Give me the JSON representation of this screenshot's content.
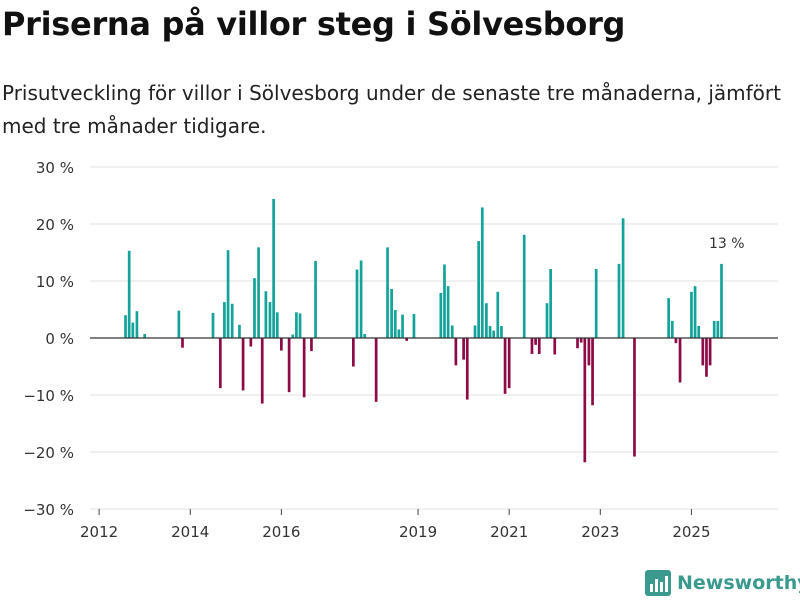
{
  "title": "Priserna på villor steg i Sölvesborg",
  "subtitle": "Prisutveckling för villor i Sölvesborg under de senaste tre månaderna, jämfört med tre månader tidigare.",
  "brand": "Newsworthy",
  "colors": {
    "positive": "#13a39a",
    "negative": "#8c0a45",
    "grid": "#e2e2e2",
    "zero_line": "#333333",
    "brand": "#3a9a8e"
  },
  "chart_data": {
    "type": "bar",
    "title": "Priserna på villor steg i Sölvesborg",
    "xlabel": "",
    "ylabel": "",
    "ylim": [
      -30,
      30
    ],
    "xlim": [
      2011.8,
      2026.9
    ],
    "y_ticks": [
      30,
      20,
      10,
      0,
      -10,
      -20,
      -30
    ],
    "y_tick_labels": [
      "30 %",
      "20 %",
      "10 %",
      "0 %",
      "−10 %",
      "−20 %",
      "−30 %"
    ],
    "x_ticks": [
      2012,
      2014,
      2016,
      2019,
      2021,
      2023,
      2025
    ],
    "x_tick_labels": [
      "2012",
      "2014",
      "2016",
      "2019",
      "2021",
      "2023",
      "2025"
    ],
    "annotation": {
      "text": "13 %",
      "x": 2025.75,
      "y": 13
    },
    "series": [
      {
        "name": "Prisutveckling",
        "points": [
          {
            "x": 2012.58,
            "y": 4
          },
          {
            "x": 2012.66,
            "y": 15.3
          },
          {
            "x": 2012.74,
            "y": 2.7
          },
          {
            "x": 2012.83,
            "y": 4.7
          },
          {
            "x": 2013.0,
            "y": 0.7
          },
          {
            "x": 2013.75,
            "y": 4.8
          },
          {
            "x": 2013.83,
            "y": -1.7
          },
          {
            "x": 2014.5,
            "y": 4.4
          },
          {
            "x": 2014.66,
            "y": -8.8
          },
          {
            "x": 2014.75,
            "y": 6.3
          },
          {
            "x": 2014.83,
            "y": 15.4
          },
          {
            "x": 2014.92,
            "y": 6
          },
          {
            "x": 2015.08,
            "y": 2.3
          },
          {
            "x": 2015.16,
            "y": -9.2
          },
          {
            "x": 2015.33,
            "y": -1.5
          },
          {
            "x": 2015.41,
            "y": 10.5
          },
          {
            "x": 2015.5,
            "y": 15.9
          },
          {
            "x": 2015.58,
            "y": -11.5
          },
          {
            "x": 2015.66,
            "y": 8.2
          },
          {
            "x": 2015.75,
            "y": 6.3
          },
          {
            "x": 2015.83,
            "y": 24.4
          },
          {
            "x": 2015.91,
            "y": 4.5
          },
          {
            "x": 2016.0,
            "y": -2.2
          },
          {
            "x": 2016.17,
            "y": -9.5
          },
          {
            "x": 2016.25,
            "y": 0.6
          },
          {
            "x": 2016.33,
            "y": 4.5
          },
          {
            "x": 2016.41,
            "y": 4.3
          },
          {
            "x": 2016.5,
            "y": -10.4
          },
          {
            "x": 2016.66,
            "y": -2.3
          },
          {
            "x": 2016.75,
            "y": 13.5
          },
          {
            "x": 2017.58,
            "y": -5
          },
          {
            "x": 2017.66,
            "y": 12
          },
          {
            "x": 2017.75,
            "y": 13.6
          },
          {
            "x": 2017.83,
            "y": 0.7
          },
          {
            "x": 2018.08,
            "y": -11.2
          },
          {
            "x": 2018.33,
            "y": 15.9
          },
          {
            "x": 2018.42,
            "y": 8.6
          },
          {
            "x": 2018.5,
            "y": 4.9
          },
          {
            "x": 2018.58,
            "y": 1.5
          },
          {
            "x": 2018.66,
            "y": 4.1
          },
          {
            "x": 2018.75,
            "y": -0.5
          },
          {
            "x": 2018.91,
            "y": 4.2
          },
          {
            "x": 2019.5,
            "y": 7.9
          },
          {
            "x": 2019.58,
            "y": 12.9
          },
          {
            "x": 2019.66,
            "y": 9.1
          },
          {
            "x": 2019.75,
            "y": 2.2
          },
          {
            "x": 2019.83,
            "y": -4.8
          },
          {
            "x": 2020.0,
            "y": -3.8
          },
          {
            "x": 2020.08,
            "y": -10.8
          },
          {
            "x": 2020.25,
            "y": 2.2
          },
          {
            "x": 2020.33,
            "y": 17
          },
          {
            "x": 2020.41,
            "y": 22.9
          },
          {
            "x": 2020.5,
            "y": 6.1
          },
          {
            "x": 2020.58,
            "y": 2.1
          },
          {
            "x": 2020.66,
            "y": 1.3
          },
          {
            "x": 2020.75,
            "y": 8.1
          },
          {
            "x": 2020.83,
            "y": 2.1
          },
          {
            "x": 2020.91,
            "y": -9.8
          },
          {
            "x": 2021.0,
            "y": -8.8
          },
          {
            "x": 2021.33,
            "y": 18.1
          },
          {
            "x": 2021.5,
            "y": -2.8
          },
          {
            "x": 2021.58,
            "y": -1.2
          },
          {
            "x": 2021.66,
            "y": -2.8
          },
          {
            "x": 2021.83,
            "y": 6.1
          },
          {
            "x": 2021.91,
            "y": 12.1
          },
          {
            "x": 2022.0,
            "y": -2.9
          },
          {
            "x": 2022.5,
            "y": -1.8
          },
          {
            "x": 2022.58,
            "y": -0.8
          },
          {
            "x": 2022.66,
            "y": -21.8
          },
          {
            "x": 2022.75,
            "y": -4.8
          },
          {
            "x": 2022.83,
            "y": -11.8
          },
          {
            "x": 2022.91,
            "y": 12.1
          },
          {
            "x": 2023.41,
            "y": 13
          },
          {
            "x": 2023.5,
            "y": 21
          },
          {
            "x": 2023.75,
            "y": -20.8
          },
          {
            "x": 2024.5,
            "y": 7
          },
          {
            "x": 2024.58,
            "y": 3
          },
          {
            "x": 2024.66,
            "y": -0.9
          },
          {
            "x": 2024.75,
            "y": -7.8
          },
          {
            "x": 2025.0,
            "y": 8.1
          },
          {
            "x": 2025.08,
            "y": 9.1
          },
          {
            "x": 2025.16,
            "y": 2.1
          },
          {
            "x": 2025.25,
            "y": -4.8
          },
          {
            "x": 2025.33,
            "y": -6.8
          },
          {
            "x": 2025.41,
            "y": -4.8
          },
          {
            "x": 2025.5,
            "y": 3
          },
          {
            "x": 2025.58,
            "y": 3
          },
          {
            "x": 2025.66,
            "y": 13
          }
        ]
      }
    ]
  }
}
